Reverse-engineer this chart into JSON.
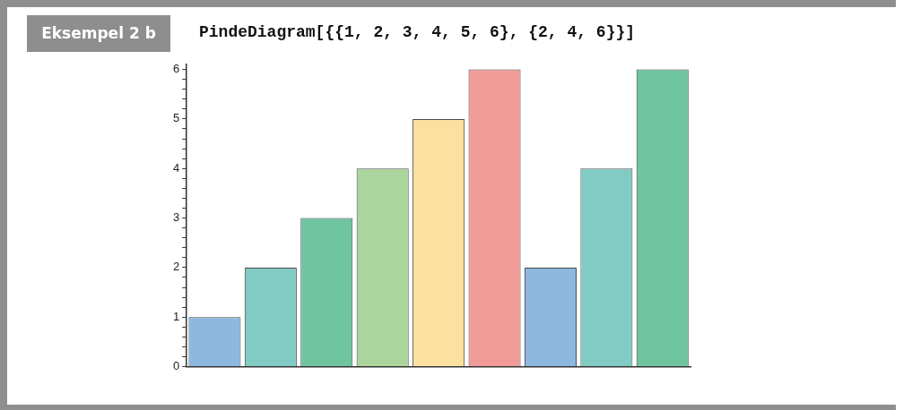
{
  "chart_data": {
    "type": "bar",
    "title": "PindeDiagram[{{1, 2, 3, 4, 5, 6}, {2, 4, 6}}]",
    "annotations": [
      "Eksempel 2 b"
    ],
    "categories": [
      null,
      null,
      null,
      null,
      null,
      null,
      null,
      null,
      null
    ],
    "values": [
      1,
      2,
      3,
      4,
      5,
      6,
      2,
      4,
      6
    ],
    "colors": [
      "#8db8e0",
      "#82cbc4",
      "#6fc59f",
      "#acd59d",
      "#fce09f",
      "#f29c99",
      "#8db8e0",
      "#82cbc4",
      "#6fc59f"
    ],
    "ylim": [
      0,
      6.1
    ],
    "yticks": [
      0,
      {
        "value": 0.2,
        "label": null
      },
      {
        "value": 0.4,
        "label": null
      },
      {
        "value": 0.6,
        "label": null
      },
      {
        "value": 0.8,
        "label": null
      },
      1,
      {
        "value": 1.2,
        "label": null
      },
      {
        "value": 1.4,
        "label": null
      },
      {
        "value": 1.6,
        "label": null
      },
      {
        "value": 1.8,
        "label": null
      },
      2,
      {
        "value": 2.2,
        "label": null
      },
      {
        "value": 2.4,
        "label": null
      },
      {
        "value": 2.6,
        "label": null
      },
      {
        "value": 2.8,
        "label": null
      },
      3,
      {
        "value": 3.2,
        "label": null
      },
      {
        "value": 3.4,
        "label": null
      },
      {
        "value": 3.6,
        "label": null
      },
      {
        "value": 3.8,
        "label": null
      },
      4,
      {
        "value": 4.2,
        "label": null
      },
      {
        "value": 4.4,
        "label": null
      },
      {
        "value": 4.6,
        "label": null
      },
      {
        "value": 4.8,
        "label": null
      },
      5,
      {
        "value": 5.2,
        "label": null
      },
      {
        "value": 5.4,
        "label": null
      },
      {
        "value": 5.6,
        "label": null
      },
      {
        "value": 5.8,
        "label": null
      },
      6
    ],
    "grid": false,
    "legend": false
  }
}
